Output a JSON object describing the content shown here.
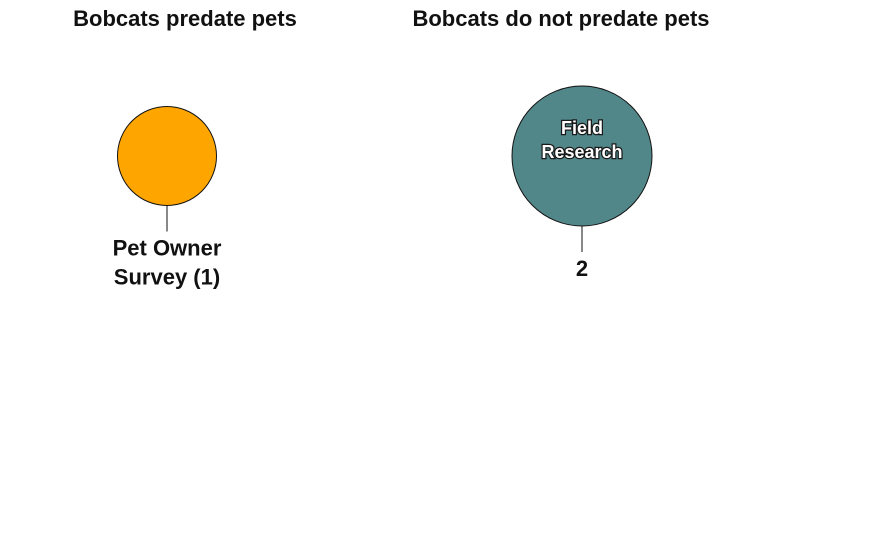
{
  "chart_data": {
    "type": "bubble",
    "title": "",
    "groups": [
      {
        "title": "Bobcats predate pets",
        "bubbles": [
          {
            "inner_label": "",
            "outer_label": [
              "Pet Owner",
              "Survey (1)"
            ],
            "value": 1,
            "color": "#FFA500"
          }
        ]
      },
      {
        "title": "Bobcats do not predate pets",
        "bubbles": [
          {
            "inner_label": [
              "Field",
              "Research"
            ],
            "outer_label": [
              "2"
            ],
            "value": 2,
            "color": "#52878A"
          }
        ]
      }
    ]
  }
}
